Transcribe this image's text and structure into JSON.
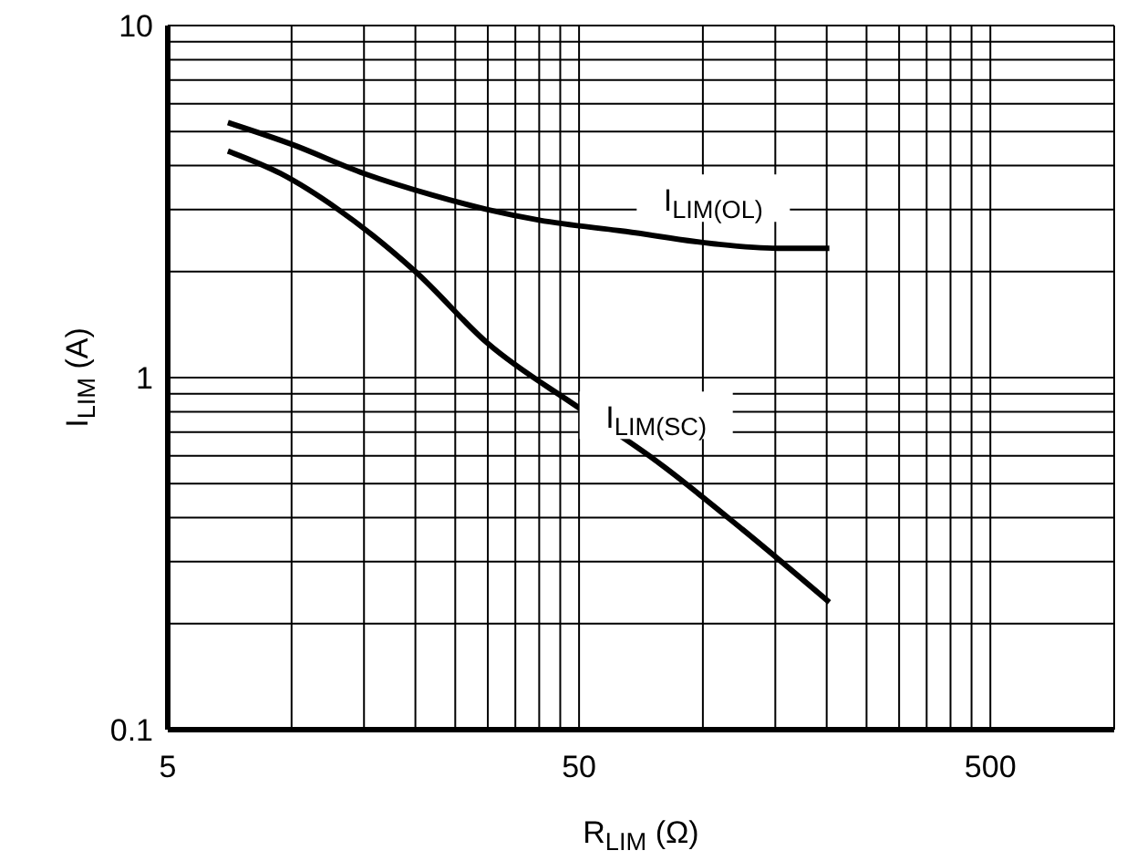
{
  "chart_data": {
    "type": "line",
    "xlabel": "R$_{LIM}$ (Ω)",
    "ylabel": "I$_{LIM}$ (A)",
    "log": "xy",
    "grid": true,
    "marker": "none",
    "line_style": "solid",
    "xlim": [
      5,
      1000
    ],
    "ylim": [
      0.1,
      10
    ],
    "xticks": [
      5,
      {
        "value": 10,
        "label": null
      },
      {
        "value": 15,
        "label": null
      },
      {
        "value": 20,
        "label": null
      },
      {
        "value": 25,
        "label": null
      },
      {
        "value": 30,
        "label": null
      },
      {
        "value": 35,
        "label": null
      },
      {
        "value": 40,
        "label": null
      },
      {
        "value": 45,
        "label": null
      },
      50,
      {
        "value": 100,
        "label": null
      },
      {
        "value": 150,
        "label": null
      },
      {
        "value": 200,
        "label": null
      },
      {
        "value": 250,
        "label": null
      },
      {
        "value": 300,
        "label": null
      },
      {
        "value": 350,
        "label": null
      },
      {
        "value": 400,
        "label": null
      },
      {
        "value": 450,
        "label": null
      },
      500,
      {
        "value": 1000,
        "label": null
      }
    ],
    "yticks": [
      0.1,
      {
        "value": 0.2,
        "label": null
      },
      {
        "value": 0.3,
        "label": null
      },
      {
        "value": 0.4,
        "label": null
      },
      {
        "value": 0.5,
        "label": null
      },
      {
        "value": 0.6,
        "label": null
      },
      {
        "value": 0.7,
        "label": null
      },
      {
        "value": 0.8,
        "label": null
      },
      {
        "value": 0.9,
        "label": null
      },
      1,
      {
        "value": 2,
        "label": null
      },
      {
        "value": 3,
        "label": null
      },
      {
        "value": 4,
        "label": null
      },
      {
        "value": 5,
        "label": null
      },
      {
        "value": 6,
        "label": null
      },
      {
        "value": 7,
        "label": null
      },
      {
        "value": 8,
        "label": null
      },
      {
        "value": 9,
        "label": null
      },
      10
    ],
    "series": [
      {
        "name": "I$_{LIM(OL)}$",
        "color": "#000000",
        "x": [
          7,
          10,
          15,
          22,
          30,
          40,
          65,
          106,
          152,
          203
        ],
        "values": [
          5.3,
          4.6,
          3.8,
          3.3,
          3.0,
          2.8,
          2.6,
          2.4,
          2.33,
          2.33
        ]
      },
      {
        "name": "I$_{LIM(SC)}$",
        "color": "#000000",
        "x": [
          7,
          9.4,
          13,
          20,
          30,
          50,
          77,
          125,
          203
        ],
        "values": [
          4.4,
          3.8,
          3.0,
          2.0,
          1.25,
          0.82,
          0.58,
          0.37,
          0.23
        ]
      }
    ]
  }
}
